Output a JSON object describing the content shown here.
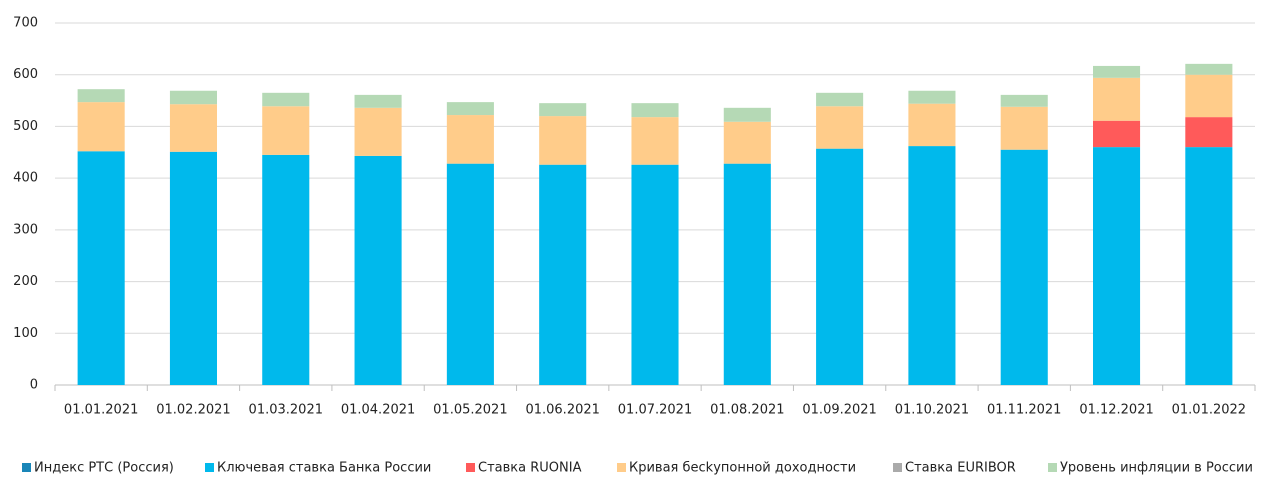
{
  "chart_data": {
    "type": "stacked_bar",
    "categories": [
      "01.01.2021",
      "01.02.2021",
      "01.03.2021",
      "01.04.2021",
      "01.05.2021",
      "01.06.2021",
      "01.07.2021",
      "01.08.2021",
      "01.09.2021",
      "01.10.2021",
      "01.11.2021",
      "01.12.2021",
      "01.01.2022"
    ],
    "series": [
      {
        "name": "Индекс РТС (Россия)",
        "color": "#1a86b8",
        "values": [
          0,
          0,
          0,
          0,
          0,
          0,
          0,
          0,
          0,
          0,
          0,
          0,
          0
        ]
      },
      {
        "name": "Ключевая ставка Банка России",
        "color": "#00b9ec",
        "values": [
          452,
          451,
          445,
          443,
          428,
          426,
          426,
          428,
          457,
          462,
          455,
          460,
          460
        ]
      },
      {
        "name": "Ставка RUONIA",
        "color": "#ff5a5a",
        "values": [
          0,
          0,
          0,
          0,
          0,
          0,
          0,
          0,
          0,
          0,
          0,
          51,
          58
        ]
      },
      {
        "name": "Кривая бесkупонной доходности",
        "color": "#ffcc8a",
        "values": [
          95,
          92,
          94,
          93,
          94,
          94,
          92,
          81,
          82,
          82,
          83,
          83,
          82
        ]
      },
      {
        "name": "Ставка EURIBOR",
        "color": "#aaaaaa",
        "values": [
          0,
          0,
          0,
          0,
          0,
          0,
          0,
          0,
          0,
          0,
          0,
          0,
          0
        ]
      },
      {
        "name": "Уровень инфляции в России",
        "color": "#b5d9b5",
        "values": [
          25,
          26,
          26,
          25,
          25,
          25,
          27,
          27,
          26,
          25,
          23,
          23,
          21
        ]
      }
    ],
    "ylim": [
      0,
      700
    ],
    "yticks": [
      0,
      100,
      200,
      300,
      400,
      500,
      600,
      700
    ],
    "grid": true
  }
}
